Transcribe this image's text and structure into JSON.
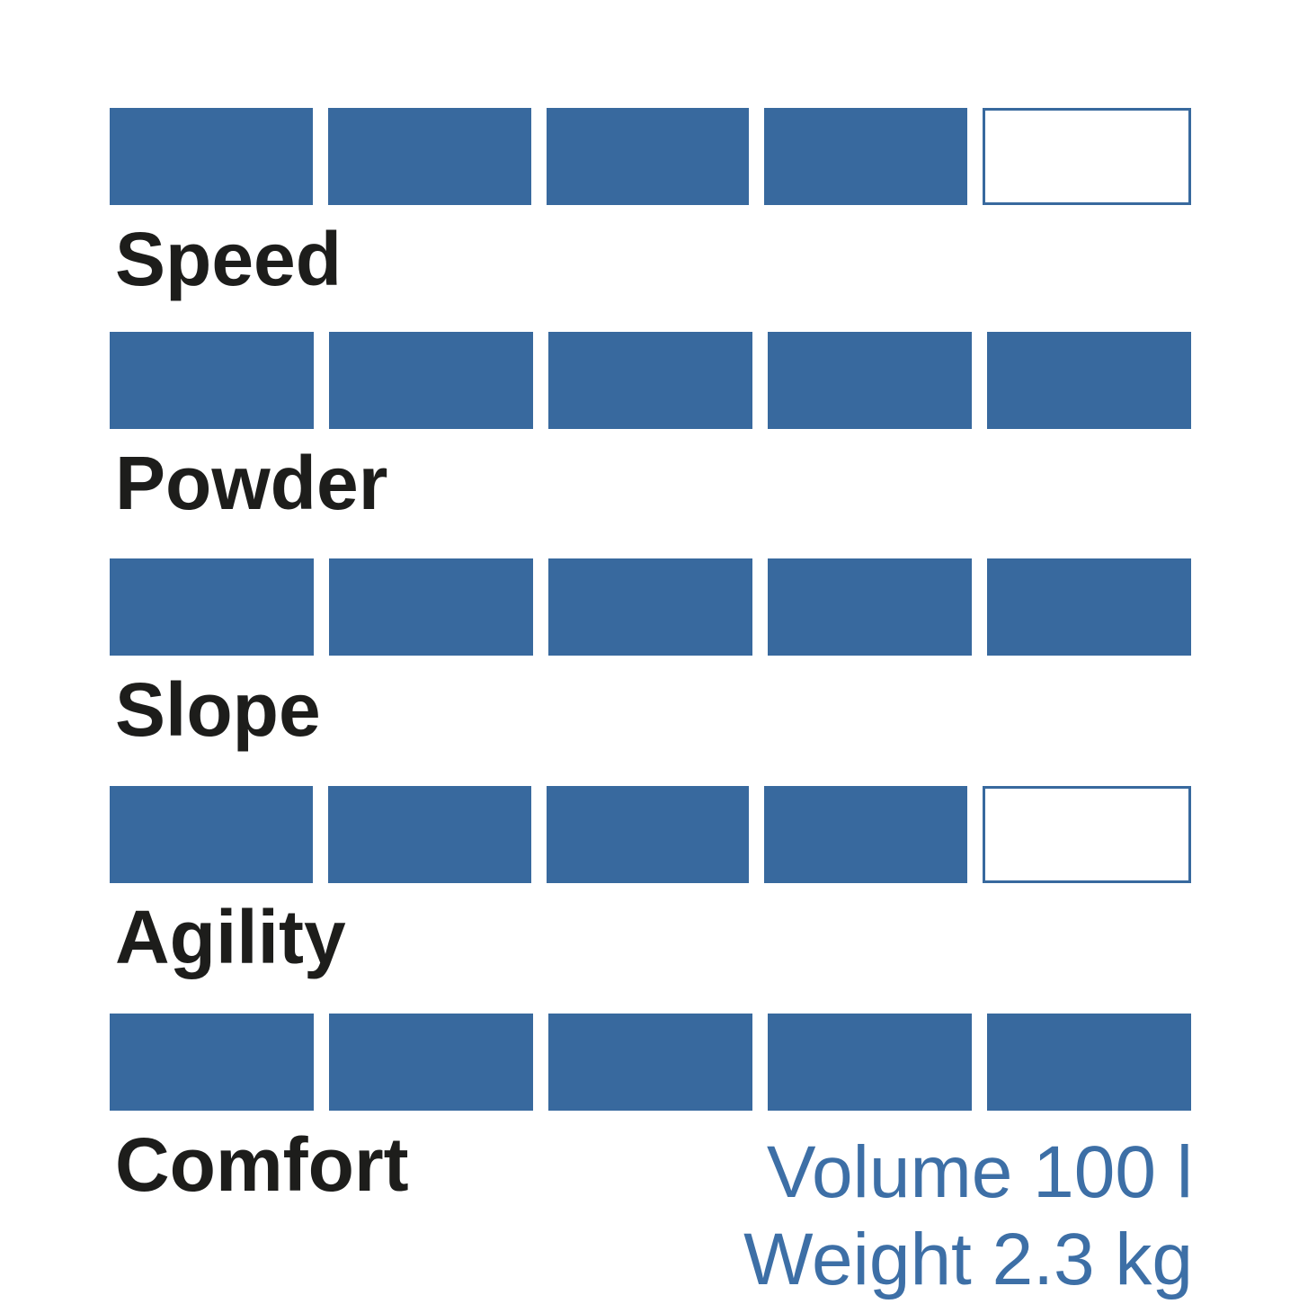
{
  "ratings": {
    "max": 5,
    "items": [
      {
        "label": "Speed",
        "value": 4
      },
      {
        "label": "Powder",
        "value": 5
      },
      {
        "label": "Slope",
        "value": 5
      },
      {
        "label": "Agility",
        "value": 4
      },
      {
        "label": "Comfort",
        "value": 5
      }
    ]
  },
  "specs": {
    "volume": "Volume 100 l",
    "weight": "Weight 2.3 kg"
  },
  "colors": {
    "bar_fill": "#38699E",
    "bar_empty_border": "#38699E",
    "label_text": "#1D1D1B",
    "specs_text": "#3D6FA6",
    "background": "#FFFFFF"
  },
  "chart_data": {
    "type": "bar",
    "subtype": "segmented-rating",
    "categories": [
      "Speed",
      "Powder",
      "Slope",
      "Agility",
      "Comfort"
    ],
    "values": [
      4,
      5,
      5,
      4,
      5
    ],
    "scale": {
      "min": 0,
      "max": 5,
      "segments_per_row": 5
    },
    "title": "",
    "xlabel": "",
    "ylabel": "",
    "legend": "none",
    "grid": false,
    "annotations": [
      "Volume 100 l",
      "Weight 2.3 kg"
    ],
    "annotation_position": "bottom-right"
  }
}
